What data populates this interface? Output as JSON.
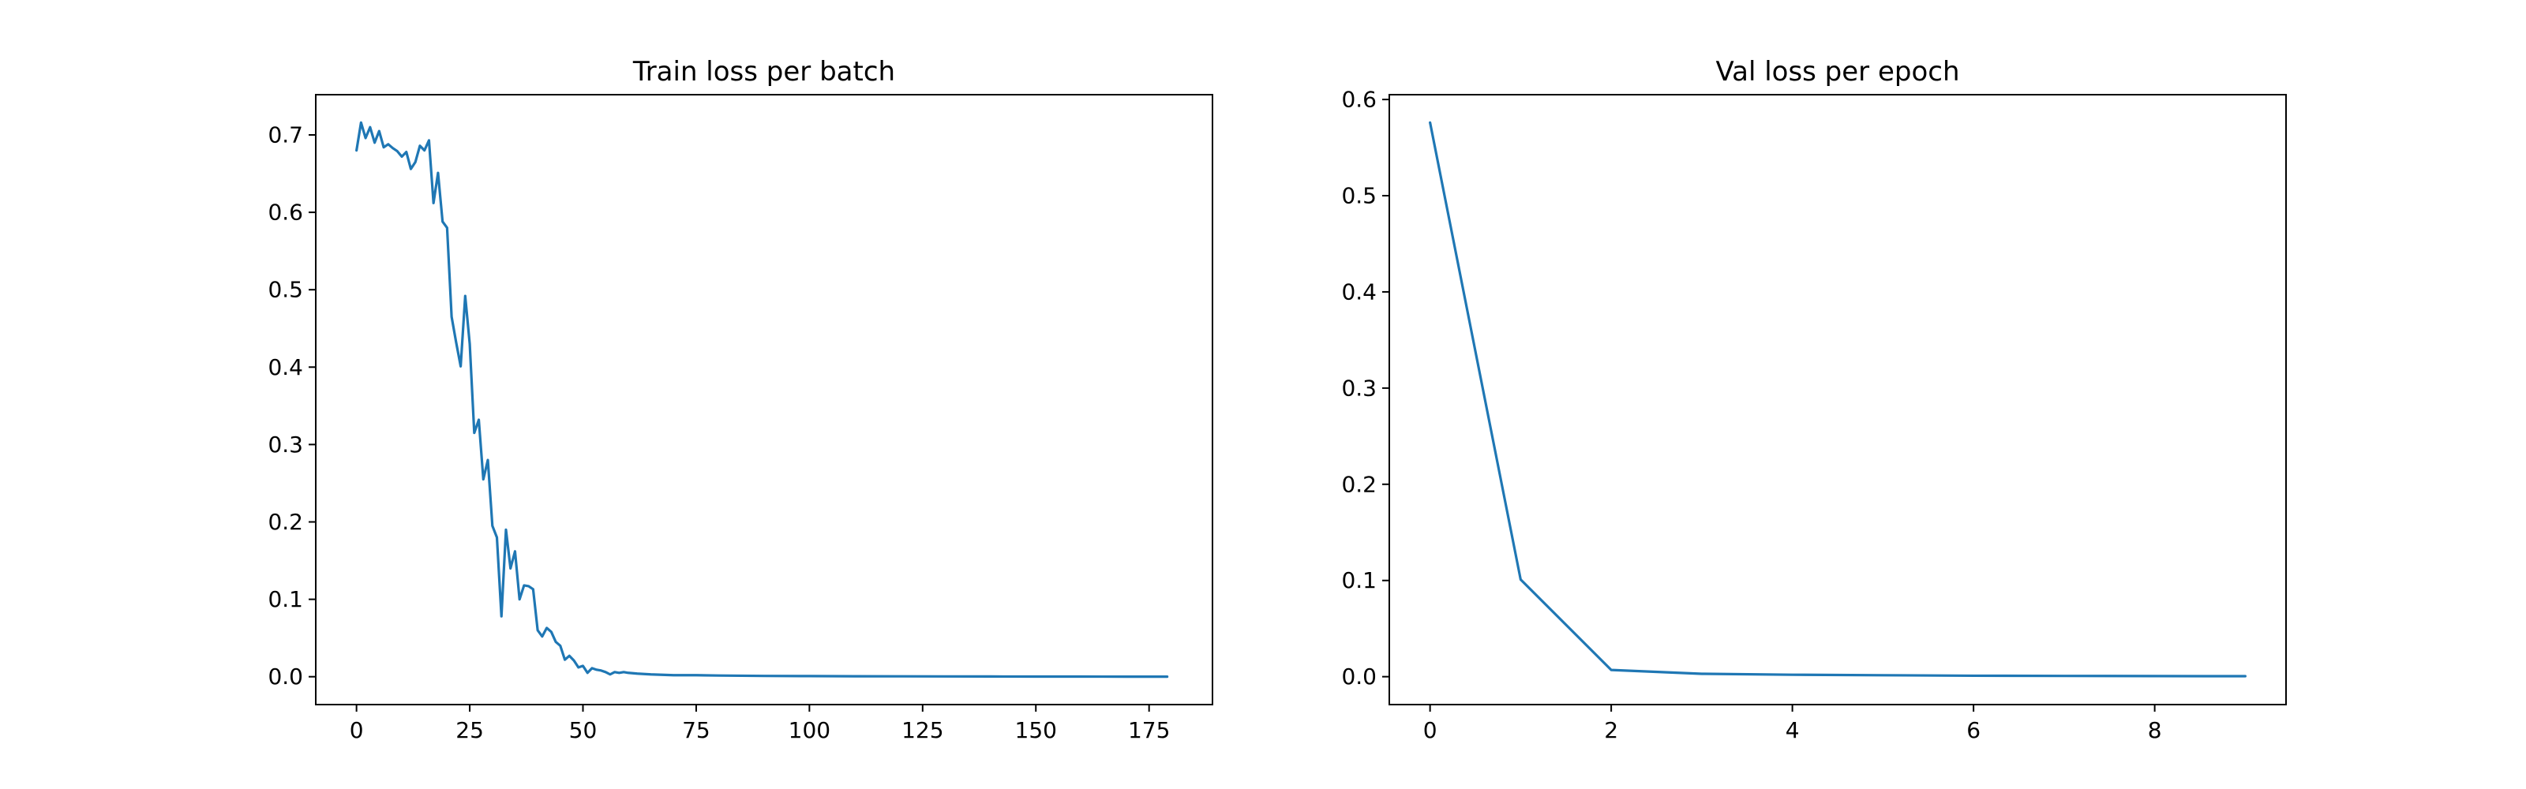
{
  "colors": {
    "series": "#1f77b4",
    "axis": "#000000",
    "background": "#ffffff"
  },
  "chart_data": [
    {
      "type": "line",
      "title": "Train loss per batch",
      "xlabel": "",
      "ylabel": "",
      "xlim": [
        -9,
        189
      ],
      "ylim": [
        -0.036,
        0.752
      ],
      "xticks": [
        0,
        25,
        50,
        75,
        100,
        125,
        150,
        175
      ],
      "xtick_labels": [
        "0",
        "25",
        "50",
        "75",
        "100",
        "125",
        "150",
        "175"
      ],
      "yticks": [
        0.0,
        0.1,
        0.2,
        0.3,
        0.4,
        0.5,
        0.6,
        0.7
      ],
      "ytick_labels": [
        "0.0",
        "0.1",
        "0.2",
        "0.3",
        "0.4",
        "0.5",
        "0.6",
        "0.7"
      ],
      "grid": false,
      "series": [
        {
          "color": "#1f77b4",
          "x": [
            0,
            1,
            2,
            3,
            4,
            5,
            6,
            7,
            8,
            9,
            10,
            11,
            12,
            13,
            14,
            15,
            16,
            17,
            18,
            19,
            20,
            21,
            22,
            23,
            24,
            25,
            26,
            27,
            28,
            29,
            30,
            31,
            32,
            33,
            34,
            35,
            36,
            37,
            38,
            39,
            40,
            41,
            42,
            43,
            44,
            45,
            46,
            47,
            48,
            49,
            50,
            51,
            52,
            53,
            54,
            55,
            56,
            57,
            58,
            59,
            60,
            62,
            65,
            70,
            75,
            80,
            90,
            100,
            110,
            120,
            130,
            140,
            150,
            160,
            170,
            179
          ],
          "y": [
            0.68,
            0.716,
            0.696,
            0.71,
            0.69,
            0.705,
            0.684,
            0.688,
            0.683,
            0.679,
            0.672,
            0.678,
            0.656,
            0.665,
            0.686,
            0.68,
            0.693,
            0.612,
            0.651,
            0.588,
            0.58,
            0.465,
            0.432,
            0.401,
            0.492,
            0.43,
            0.315,
            0.332,
            0.255,
            0.28,
            0.195,
            0.18,
            0.078,
            0.19,
            0.14,
            0.162,
            0.1,
            0.118,
            0.117,
            0.113,
            0.06,
            0.052,
            0.063,
            0.058,
            0.045,
            0.04,
            0.022,
            0.027,
            0.021,
            0.012,
            0.014,
            0.005,
            0.011,
            0.009,
            0.008,
            0.006,
            0.003,
            0.006,
            0.005,
            0.006,
            0.005,
            0.004,
            0.003,
            0.002,
            0.002,
            0.0015,
            0.001,
            0.0008,
            0.0006,
            0.0005,
            0.0004,
            0.0003,
            0.0002,
            0.0002,
            0.0001,
            0.0001
          ]
        }
      ]
    },
    {
      "type": "line",
      "title": "Val loss per epoch",
      "xlabel": "",
      "ylabel": "",
      "xlim": [
        -0.45,
        9.45
      ],
      "ylim": [
        -0.029,
        0.605
      ],
      "xticks": [
        0,
        2,
        4,
        6,
        8
      ],
      "xtick_labels": [
        "0",
        "2",
        "4",
        "6",
        "8"
      ],
      "yticks": [
        0.0,
        0.1,
        0.2,
        0.3,
        0.4,
        0.5,
        0.6
      ],
      "ytick_labels": [
        "0.0",
        "0.1",
        "0.2",
        "0.3",
        "0.4",
        "0.5",
        "0.6"
      ],
      "grid": false,
      "series": [
        {
          "color": "#1f77b4",
          "x": [
            0,
            1,
            2,
            3,
            4,
            5,
            6,
            7,
            8,
            9
          ],
          "y": [
            0.576,
            0.101,
            0.007,
            0.003,
            0.002,
            0.0015,
            0.001,
            0.0008,
            0.0006,
            0.0005
          ]
        }
      ]
    }
  ]
}
